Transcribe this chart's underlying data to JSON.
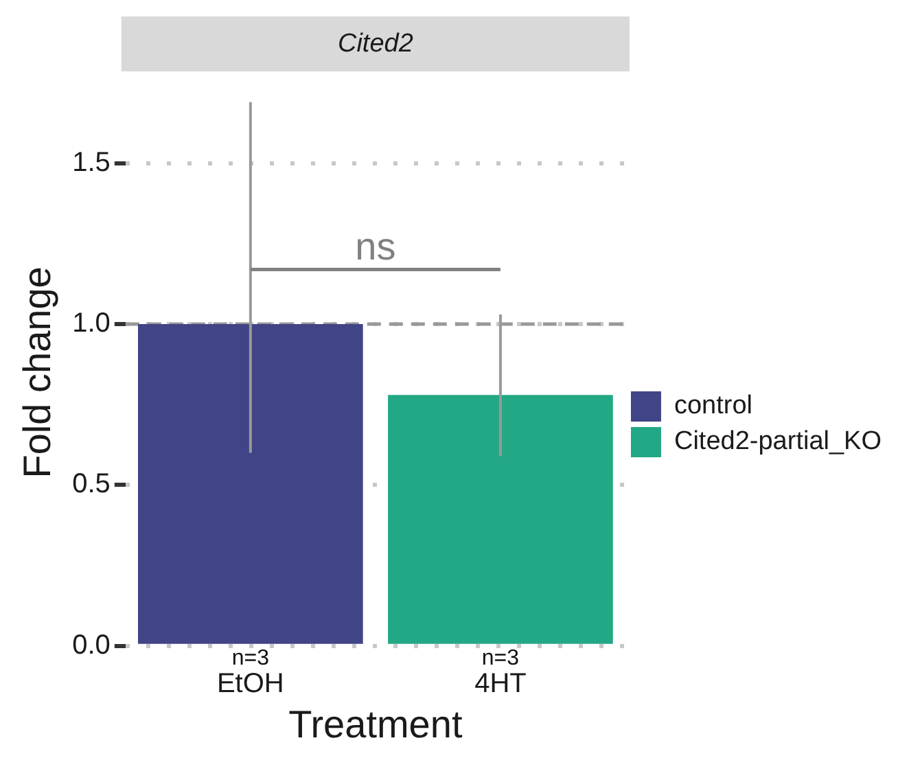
{
  "chart_data": {
    "type": "bar",
    "title": "Cited2",
    "xlabel": "Treatment",
    "ylabel": "Fold change",
    "categories": [
      "EtOH",
      "4HT"
    ],
    "series": [
      {
        "name": "control",
        "color": "#414487",
        "values": [
          1.0,
          null
        ],
        "errors": [
          [
            0.6,
            1.69
          ],
          null
        ]
      },
      {
        "name": "Cited2-partial_KO",
        "color": "#22a884",
        "values": [
          null,
          0.78
        ],
        "errors": [
          null,
          [
            0.59,
            1.03
          ]
        ]
      }
    ],
    "ylim": [
      0,
      1.7
    ],
    "yticks": [
      {
        "value": 0,
        "label": "0.0"
      },
      0.5,
      {
        "value": 1,
        "label": "1.0"
      },
      1.5
    ],
    "ref_lines": [
      {
        "axis": "y",
        "value": 1,
        "color": "#999999",
        "line_style": "dashed"
      }
    ],
    "annotations": [
      {
        "text": "ns",
        "x": "EtOH",
        "y": 1.17
      },
      "n=3",
      "n=3"
    ],
    "grid": "y",
    "legend": "right"
  }
}
